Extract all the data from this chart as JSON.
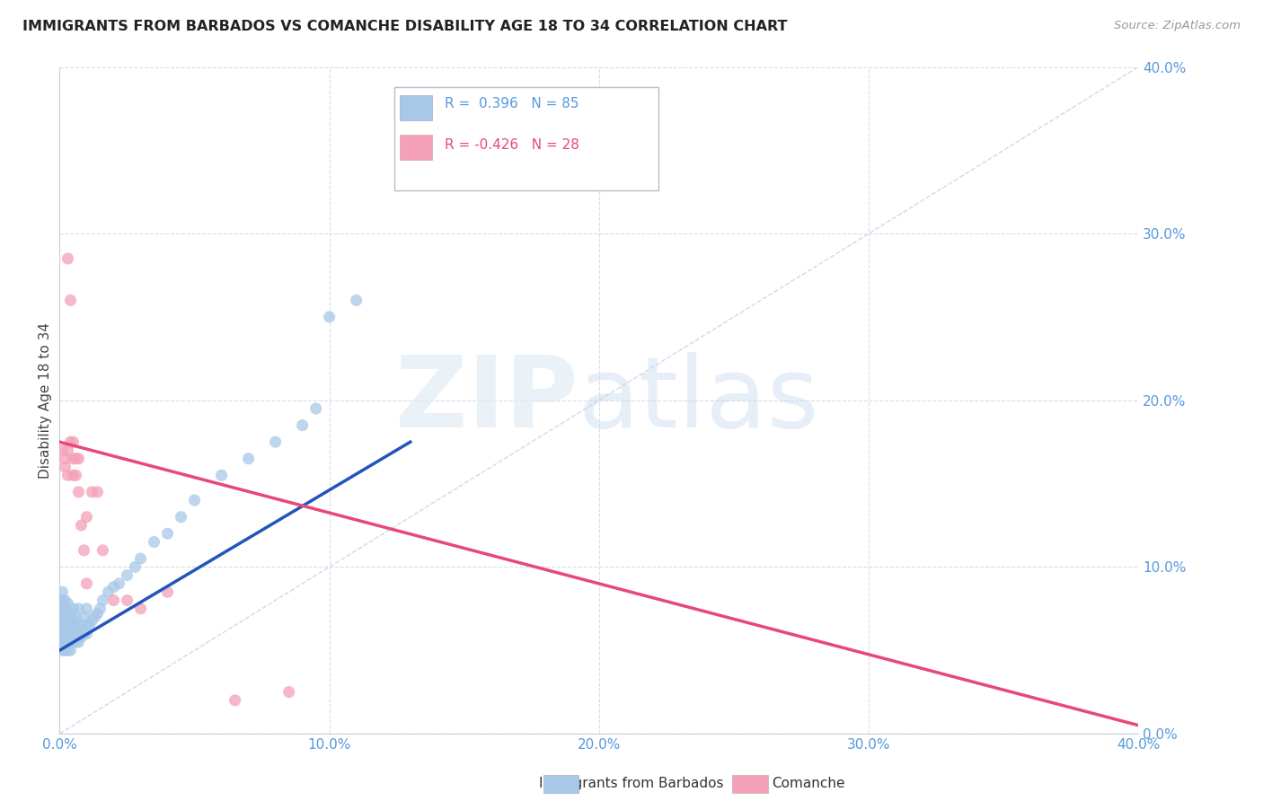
{
  "title": "IMMIGRANTS FROM BARBADOS VS COMANCHE DISABILITY AGE 18 TO 34 CORRELATION CHART",
  "source": "Source: ZipAtlas.com",
  "ylabel": "Disability Age 18 to 34",
  "xlim": [
    0.0,
    0.4
  ],
  "ylim": [
    0.0,
    0.4
  ],
  "xticks": [
    0.0,
    0.1,
    0.2,
    0.3,
    0.4
  ],
  "yticks": [
    0.0,
    0.1,
    0.2,
    0.3,
    0.4
  ],
  "legend_label1": "Immigrants from Barbados",
  "legend_label2": "Comanche",
  "r1": 0.396,
  "n1": 85,
  "r2": -0.426,
  "n2": 28,
  "color1": "#a8c8e8",
  "color2": "#f4a0b8",
  "line1_color": "#2255bb",
  "line2_color": "#e84878",
  "diagonal_color": "#c0d0e8",
  "watermark_zip": "ZIP",
  "watermark_atlas": "atlas",
  "background_color": "#ffffff",
  "grid_color": "#d8dce8",
  "tick_color": "#5599dd",
  "scatter1_x": [
    0.0,
    0.0,
    0.0,
    0.0,
    0.0,
    0.0,
    0.0,
    0.0,
    0.0,
    0.0,
    0.001,
    0.001,
    0.001,
    0.001,
    0.001,
    0.001,
    0.001,
    0.001,
    0.001,
    0.001,
    0.001,
    0.001,
    0.002,
    0.002,
    0.002,
    0.002,
    0.002,
    0.002,
    0.002,
    0.002,
    0.002,
    0.003,
    0.003,
    0.003,
    0.003,
    0.003,
    0.003,
    0.003,
    0.004,
    0.004,
    0.004,
    0.004,
    0.004,
    0.005,
    0.005,
    0.005,
    0.005,
    0.005,
    0.006,
    0.006,
    0.006,
    0.007,
    0.007,
    0.007,
    0.007,
    0.008,
    0.008,
    0.009,
    0.009,
    0.01,
    0.01,
    0.01,
    0.011,
    0.012,
    0.013,
    0.014,
    0.015,
    0.016,
    0.018,
    0.02,
    0.022,
    0.025,
    0.028,
    0.03,
    0.035,
    0.04,
    0.045,
    0.05,
    0.06,
    0.07,
    0.08,
    0.09,
    0.095,
    0.1,
    0.11
  ],
  "scatter1_y": [
    0.055,
    0.06,
    0.062,
    0.065,
    0.068,
    0.07,
    0.072,
    0.075,
    0.078,
    0.08,
    0.05,
    0.055,
    0.058,
    0.06,
    0.062,
    0.065,
    0.068,
    0.07,
    0.072,
    0.075,
    0.08,
    0.085,
    0.05,
    0.055,
    0.058,
    0.06,
    0.065,
    0.068,
    0.07,
    0.075,
    0.08,
    0.05,
    0.055,
    0.06,
    0.065,
    0.068,
    0.072,
    0.078,
    0.05,
    0.055,
    0.06,
    0.065,
    0.072,
    0.055,
    0.06,
    0.065,
    0.068,
    0.075,
    0.055,
    0.06,
    0.07,
    0.055,
    0.06,
    0.065,
    0.075,
    0.058,
    0.065,
    0.06,
    0.07,
    0.06,
    0.065,
    0.075,
    0.065,
    0.068,
    0.07,
    0.072,
    0.075,
    0.08,
    0.085,
    0.088,
    0.09,
    0.095,
    0.1,
    0.105,
    0.115,
    0.12,
    0.13,
    0.14,
    0.155,
    0.165,
    0.175,
    0.185,
    0.195,
    0.25,
    0.26
  ],
  "scatter2_x": [
    0.001,
    0.002,
    0.002,
    0.003,
    0.003,
    0.003,
    0.004,
    0.004,
    0.005,
    0.005,
    0.005,
    0.006,
    0.006,
    0.007,
    0.007,
    0.008,
    0.009,
    0.01,
    0.01,
    0.012,
    0.014,
    0.016,
    0.02,
    0.025,
    0.03,
    0.04,
    0.065,
    0.085
  ],
  "scatter2_y": [
    0.17,
    0.165,
    0.16,
    0.285,
    0.17,
    0.155,
    0.26,
    0.175,
    0.175,
    0.165,
    0.155,
    0.165,
    0.155,
    0.165,
    0.145,
    0.125,
    0.11,
    0.13,
    0.09,
    0.145,
    0.145,
    0.11,
    0.08,
    0.08,
    0.075,
    0.085,
    0.02,
    0.025
  ],
  "line1_x": [
    0.0,
    0.13
  ],
  "line1_y": [
    0.05,
    0.175
  ],
  "line2_x": [
    0.0,
    0.4
  ],
  "line2_y": [
    0.175,
    0.005
  ]
}
